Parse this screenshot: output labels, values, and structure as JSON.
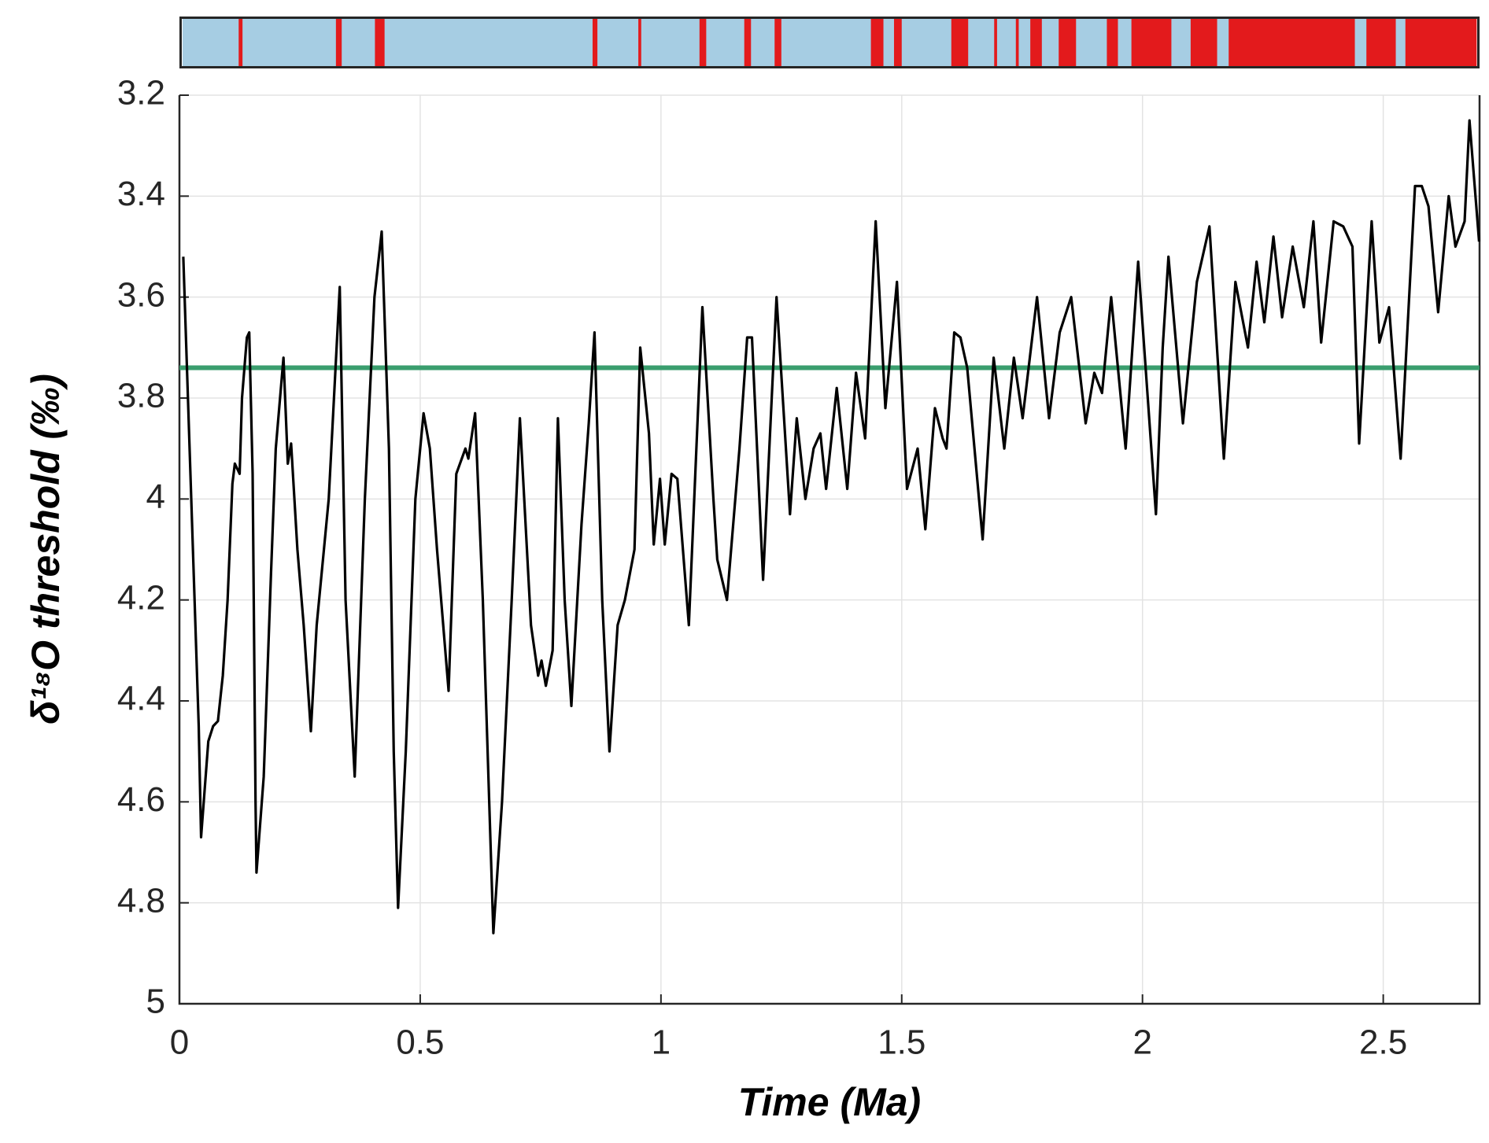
{
  "chart_data": {
    "type": "line",
    "xlabel": "Time (Ma)",
    "ylabel": "δ¹⁸O threshold (‰)",
    "xlim": [
      0,
      2.7
    ],
    "ylim": [
      3.2,
      5
    ],
    "y_reversed": true,
    "grid": true,
    "xticks": [
      0,
      0.5,
      1,
      1.5,
      2,
      2.5
    ],
    "yticks": [
      3.2,
      3.4,
      3.6,
      3.8,
      4,
      4.2,
      4.4,
      4.6,
      4.8,
      5
    ],
    "reference_line": {
      "value": 3.74,
      "color": "#3a9e6e"
    },
    "band_strip": {
      "background": "#a6cde3",
      "color": "#e31a1c",
      "intervals": [
        [
          0.123,
          0.131
        ],
        [
          0.325,
          0.337
        ],
        [
          0.406,
          0.426
        ],
        [
          0.858,
          0.868
        ],
        [
          0.953,
          0.959
        ],
        [
          1.08,
          1.094
        ],
        [
          1.173,
          1.187
        ],
        [
          1.236,
          1.25
        ],
        [
          1.436,
          1.462
        ],
        [
          1.484,
          1.5
        ],
        [
          1.603,
          1.638
        ],
        [
          1.692,
          1.698
        ],
        [
          1.737,
          1.743
        ],
        [
          1.767,
          1.791
        ],
        [
          1.826,
          1.862
        ],
        [
          1.926,
          1.949
        ],
        [
          1.977,
          2.06
        ],
        [
          2.1,
          2.155
        ],
        [
          2.179,
          2.441
        ],
        [
          2.465,
          2.526
        ],
        [
          2.546,
          2.694
        ]
      ]
    },
    "series": [
      {
        "color": "#000000",
        "x": [
          0.008,
          0.04,
          0.045,
          0.06,
          0.07,
          0.08,
          0.09,
          0.1,
          0.11,
          0.115,
          0.125,
          0.13,
          0.14,
          0.145,
          0.152,
          0.158,
          0.16,
          0.175,
          0.19,
          0.2,
          0.216,
          0.225,
          0.232,
          0.245,
          0.258,
          0.273,
          0.285,
          0.3,
          0.31,
          0.333,
          0.345,
          0.364,
          0.385,
          0.405,
          0.42,
          0.435,
          0.445,
          0.454,
          0.47,
          0.49,
          0.507,
          0.52,
          0.535,
          0.559,
          0.575,
          0.594,
          0.6,
          0.614,
          0.63,
          0.652,
          0.67,
          0.69,
          0.707,
          0.73,
          0.745,
          0.752,
          0.761,
          0.775,
          0.786,
          0.8,
          0.814,
          0.835,
          0.85,
          0.862,
          0.878,
          0.893,
          0.91,
          0.925,
          0.945,
          0.957,
          0.975,
          0.985,
          0.998,
          1.008,
          1.022,
          1.034,
          1.058,
          1.086,
          1.109,
          1.117,
          1.137,
          1.163,
          1.179,
          1.189,
          1.212,
          1.24,
          1.268,
          1.282,
          1.3,
          1.317,
          1.331,
          1.343,
          1.365,
          1.387,
          1.405,
          1.424,
          1.446,
          1.466,
          1.49,
          1.511,
          1.533,
          1.549,
          1.569,
          1.585,
          1.593,
          1.609,
          1.622,
          1.636,
          1.668,
          1.691,
          1.713,
          1.733,
          1.751,
          1.781,
          1.806,
          1.828,
          1.852,
          1.882,
          1.9,
          1.916,
          1.935,
          1.965,
          1.991,
          2.028,
          2.042,
          2.054,
          2.084,
          2.113,
          2.139,
          2.169,
          2.193,
          2.219,
          2.237,
          2.253,
          2.272,
          2.29,
          2.312,
          2.335,
          2.355,
          2.371,
          2.397,
          2.417,
          2.436,
          2.45,
          2.476,
          2.492,
          2.512,
          2.536,
          2.566,
          2.58,
          2.594,
          2.614,
          2.636,
          2.65,
          2.669,
          2.679,
          2.699
        ],
        "values": [
          3.52,
          4.45,
          4.67,
          4.48,
          4.45,
          4.44,
          4.35,
          4.2,
          3.97,
          3.93,
          3.95,
          3.8,
          3.68,
          3.67,
          3.95,
          4.6,
          4.74,
          4.55,
          4.15,
          3.9,
          3.72,
          3.93,
          3.89,
          4.1,
          4.25,
          4.46,
          4.25,
          4.1,
          4.0,
          3.58,
          4.2,
          4.55,
          4.0,
          3.6,
          3.47,
          3.9,
          4.5,
          4.81,
          4.5,
          4.0,
          3.83,
          3.9,
          4.1,
          4.38,
          3.95,
          3.9,
          3.92,
          3.83,
          4.2,
          4.86,
          4.6,
          4.2,
          3.84,
          4.25,
          4.35,
          4.32,
          4.37,
          4.3,
          3.84,
          4.2,
          4.41,
          4.05,
          3.85,
          3.67,
          4.2,
          4.5,
          4.25,
          4.2,
          4.1,
          3.7,
          3.87,
          4.09,
          3.96,
          4.09,
          3.95,
          3.96,
          4.25,
          3.62,
          4.0,
          4.12,
          4.2,
          3.9,
          3.68,
          3.68,
          4.16,
          3.6,
          4.03,
          3.84,
          4.0,
          3.9,
          3.87,
          3.98,
          3.78,
          3.98,
          3.75,
          3.88,
          3.45,
          3.82,
          3.57,
          3.98,
          3.9,
          4.06,
          3.82,
          3.88,
          3.9,
          3.67,
          3.68,
          3.74,
          4.08,
          3.72,
          3.9,
          3.72,
          3.84,
          3.6,
          3.84,
          3.67,
          3.6,
          3.85,
          3.75,
          3.79,
          3.6,
          3.9,
          3.53,
          4.03,
          3.7,
          3.52,
          3.85,
          3.57,
          3.46,
          3.92,
          3.57,
          3.7,
          3.53,
          3.65,
          3.48,
          3.64,
          3.5,
          3.62,
          3.45,
          3.69,
          3.45,
          3.46,
          3.5,
          3.89,
          3.45,
          3.69,
          3.62,
          3.92,
          3.38,
          3.38,
          3.42,
          3.63,
          3.4,
          3.5,
          3.45,
          3.25,
          3.49
        ]
      }
    ]
  }
}
